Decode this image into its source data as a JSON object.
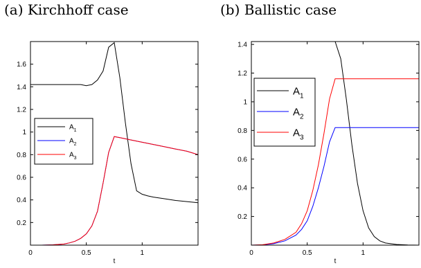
{
  "captions": {
    "a": "(a) Kirchhoff case",
    "b": "(b) Ballistic case"
  },
  "colors": {
    "A_1": "#000000",
    "A_2": "#0000ff",
    "A_3": "#ff0000"
  },
  "chart_data": [
    {
      "type": "line",
      "title": "(a) Kirchhoff case",
      "xlabel": "t",
      "ylabel": "",
      "xlim": [
        0,
        1.5
      ],
      "ylim": [
        0,
        1.8
      ],
      "xticks": [
        0,
        0.5,
        1
      ],
      "xtick_labels": [
        "0",
        "0.5",
        "1"
      ],
      "yticks": [
        0.2,
        0.4,
        0.6,
        0.8,
        1,
        1.2,
        1.4,
        1.6
      ],
      "ytick_labels": [
        "0.2",
        "0.4",
        "0.6",
        "0.8",
        "1",
        "1.2",
        "1.4",
        "1.6"
      ],
      "legend_position": "left",
      "grid": false,
      "series": [
        {
          "name": "A_1",
          "color": "#000000",
          "x": [
            0,
            0.1,
            0.2,
            0.3,
            0.4,
            0.45,
            0.5,
            0.55,
            0.6,
            0.65,
            0.7,
            0.75,
            0.8,
            0.85,
            0.9,
            0.95,
            1.0,
            1.05,
            1.1,
            1.2,
            1.3,
            1.4,
            1.5
          ],
          "y": [
            1.42,
            1.42,
            1.42,
            1.42,
            1.42,
            1.42,
            1.41,
            1.42,
            1.46,
            1.54,
            1.75,
            1.79,
            1.48,
            1.08,
            0.72,
            0.48,
            0.45,
            0.435,
            0.425,
            0.41,
            0.395,
            0.385,
            0.375
          ]
        },
        {
          "name": "A_2",
          "color": "#0000ff",
          "x": [
            0,
            0.1,
            0.2,
            0.3,
            0.35,
            0.4,
            0.45,
            0.5,
            0.55,
            0.6,
            0.65,
            0.7,
            0.75,
            0.8,
            0.9,
            1.0,
            1.1,
            1.2,
            1.3,
            1.4,
            1.5
          ],
          "y": [
            0,
            0,
            0.003,
            0.01,
            0.02,
            0.035,
            0.06,
            0.1,
            0.17,
            0.3,
            0.55,
            0.82,
            0.96,
            0.95,
            0.93,
            0.91,
            0.89,
            0.87,
            0.85,
            0.83,
            0.8
          ]
        },
        {
          "name": "A_3",
          "color": "#ff0000",
          "x": [
            0,
            0.1,
            0.2,
            0.3,
            0.35,
            0.4,
            0.45,
            0.5,
            0.55,
            0.6,
            0.65,
            0.7,
            0.75,
            0.8,
            0.9,
            1.0,
            1.1,
            1.2,
            1.3,
            1.4,
            1.5
          ],
          "y": [
            0,
            0,
            0.003,
            0.01,
            0.02,
            0.035,
            0.06,
            0.1,
            0.17,
            0.3,
            0.55,
            0.82,
            0.96,
            0.95,
            0.93,
            0.91,
            0.89,
            0.87,
            0.85,
            0.83,
            0.8
          ]
        }
      ]
    },
    {
      "type": "line",
      "title": "(b) Ballistic case",
      "xlabel": "t",
      "ylabel": "",
      "xlim": [
        0,
        1.5
      ],
      "ylim": [
        0,
        1.42
      ],
      "xticks": [
        0,
        0.5,
        1
      ],
      "xtick_labels": [
        "0",
        "0.5",
        "1"
      ],
      "yticks": [
        0.2,
        0.4,
        0.6,
        0.8,
        1,
        1.2,
        1.4
      ],
      "ytick_labels": [
        "0.2",
        "0.4",
        "0.6",
        "0.8",
        "1",
        "1.2",
        "1.4"
      ],
      "legend_position": "top-left",
      "grid": false,
      "series": [
        {
          "name": "A_1",
          "color": "#000000",
          "x": [
            0.75,
            0.8,
            0.85,
            0.9,
            0.95,
            1.0,
            1.05,
            1.1,
            1.15,
            1.2,
            1.3,
            1.4,
            1.5
          ],
          "y": [
            1.42,
            1.3,
            1.02,
            0.7,
            0.43,
            0.24,
            0.12,
            0.06,
            0.03,
            0.015,
            0.005,
            0.001,
            0
          ]
        },
        {
          "name": "A_2",
          "color": "#0000ff",
          "x": [
            0,
            0.1,
            0.2,
            0.3,
            0.4,
            0.45,
            0.5,
            0.55,
            0.6,
            0.65,
            0.7,
            0.75,
            1.0,
            1.5
          ],
          "y": [
            0,
            0.002,
            0.01,
            0.03,
            0.07,
            0.11,
            0.17,
            0.27,
            0.4,
            0.55,
            0.72,
            0.82,
            0.82,
            0.82
          ]
        },
        {
          "name": "A_3",
          "color": "#ff0000",
          "x": [
            0,
            0.1,
            0.2,
            0.3,
            0.4,
            0.45,
            0.5,
            0.55,
            0.6,
            0.65,
            0.7,
            0.75,
            1.0,
            1.5
          ],
          "y": [
            0,
            0.003,
            0.015,
            0.04,
            0.09,
            0.15,
            0.24,
            0.38,
            0.56,
            0.78,
            1.02,
            1.16,
            1.16,
            1.16
          ]
        }
      ]
    }
  ]
}
